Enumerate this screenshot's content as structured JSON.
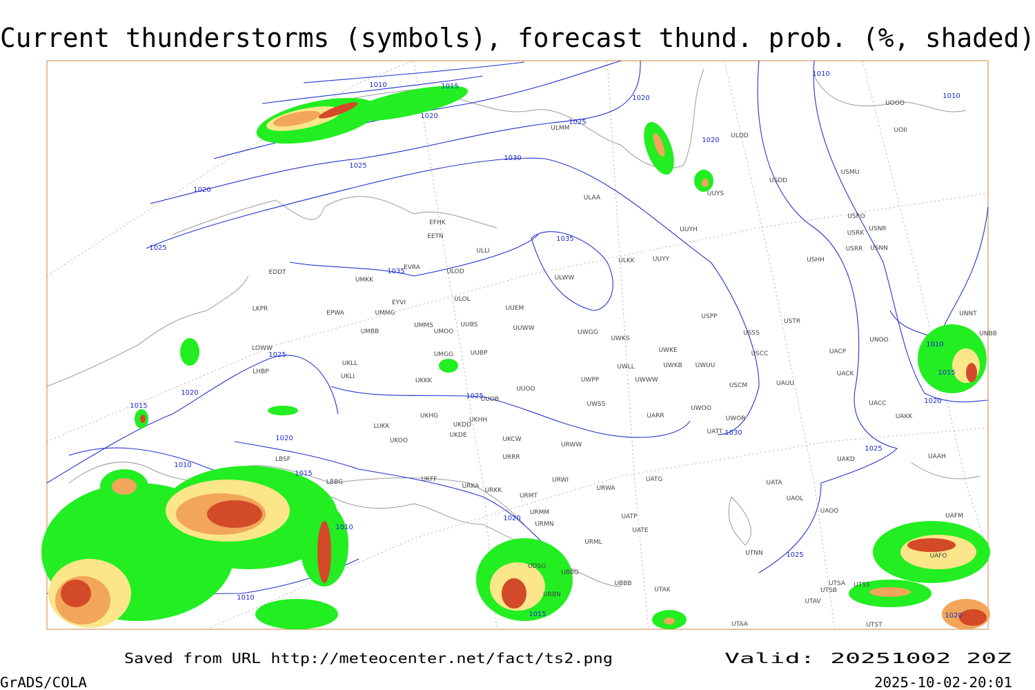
{
  "header": {
    "title": "Current thunderstorms (symbols), forecast thund. prob. (%, shaded)"
  },
  "map": {
    "stations": [
      "ULMM",
      "ULDD",
      "UOOO",
      "UOII",
      "USDD",
      "USMU",
      "UUYS",
      "ULAA",
      "USRO",
      "USRK",
      "USNR",
      "USRR",
      "USNN",
      "UUYH",
      "EFHK",
      "EETN",
      "ULLI",
      "ULKK",
      "UUYY",
      "USHH",
      "EVRA",
      "ULOD",
      "EDDT",
      "UMKK",
      "ULWW",
      "ULOL",
      "EYVI",
      "UUEM",
      "LKPR",
      "EPWA",
      "UMMG",
      "USPP",
      "USTR",
      "UMMS",
      "UUBS",
      "UUWW",
      "UMOO",
      "UMBB",
      "USSS",
      "UWGG",
      "UWKS",
      "LOWW",
      "UWKE",
      "UMGG",
      "UUBP",
      "UACP",
      "USCC",
      "UNNT",
      "UNBB",
      "UNOO",
      "UKLL",
      "UWKB",
      "UWUU",
      "UWLL",
      "LHBP",
      "UKLI",
      "UACK",
      "UKKK",
      "UWPP",
      "UWWW",
      "UAUU",
      "USCM",
      "UUOO",
      "UUOB",
      "UWSS",
      "UACC",
      "UWOO",
      "UKHG",
      "UARR",
      "UAKK",
      "UWOR",
      "LUKK",
      "UKHH",
      "UKDD",
      "UKDE",
      "UKOO",
      "UATT",
      "UKCW",
      "URWW",
      "LBSF",
      "URRR",
      "UAKD",
      "UAAH",
      "UKFF",
      "URWI",
      "UATG",
      "LBBG",
      "URKA",
      "URKK",
      "UATA",
      "URWA",
      "URMT",
      "UAOL",
      "UAOO",
      "URMM",
      "UATP",
      "URMN",
      "UATE",
      "UAFM",
      "URML",
      "UTNN",
      "UDSG",
      "UBBG",
      "UBBB",
      "UTAK",
      "UTSA",
      "UTSS",
      "UTSB",
      "UTAV",
      "UTAA",
      "UTST",
      "UAFO",
      "UBBN"
    ],
    "isobar_labels": [
      1010,
      1010,
      1010,
      1015,
      1020,
      1020,
      1025,
      1020,
      1025,
      1030,
      1020,
      1025,
      1035,
      1035,
      1025,
      1025,
      1020,
      1015,
      1020,
      1010,
      1015,
      1010,
      1020,
      1010,
      1015,
      1030,
      1025,
      1020,
      1010,
      1015,
      1025,
      1020
    ]
  },
  "footer": {
    "source": "Saved from URL http://meteocenter.net/fact/ts2.png",
    "valid": "Valid: 20251002 20Z",
    "software": "GrADS/COLA",
    "timestamp": "2025-10-02-20:01"
  }
}
